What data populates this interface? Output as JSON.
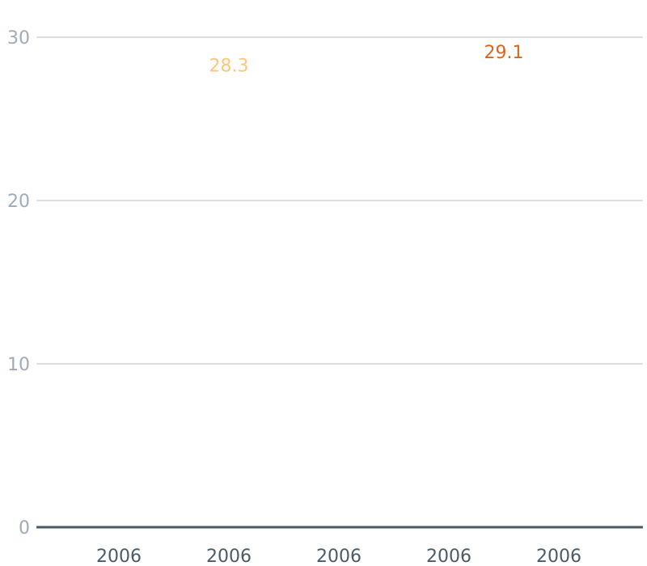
{
  "chart_data": {
    "type": "line",
    "title": "",
    "xlabel": "",
    "ylabel": "",
    "ylim": [
      0,
      30
    ],
    "yticks": [
      0,
      10,
      20,
      30
    ],
    "ytick_labels": [
      "0",
      "10",
      "20",
      "30"
    ],
    "x_tick_labels": [
      "2006",
      "2006",
      "2006",
      "2006",
      "2006"
    ],
    "grid": true,
    "legend": "none",
    "colors": {
      "gridline": "#b8bcc2",
      "baseline": "#4a5a66",
      "ytick_text": "#a0aab4",
      "xtick_text": "#4a5a66"
    },
    "series": [
      {
        "color": "#fcc777",
        "points": [
          {
            "x_index": 1,
            "y": 28.3,
            "label": "28.3"
          }
        ]
      },
      {
        "color": "#d9651d",
        "points": [
          {
            "x_index": 3.5,
            "y": 29.1,
            "label": "29.1"
          }
        ]
      }
    ]
  }
}
